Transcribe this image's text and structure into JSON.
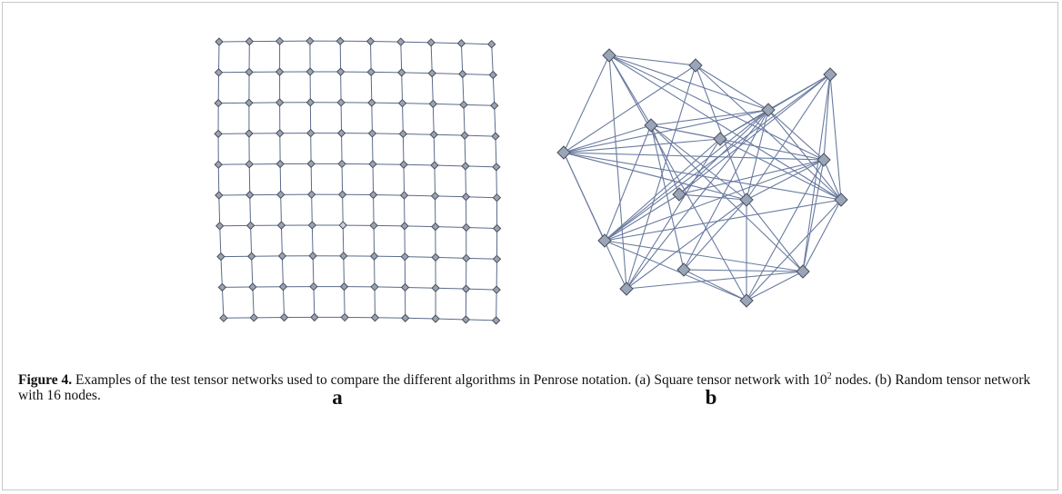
{
  "panels": {
    "a": "a",
    "b": "b"
  },
  "caption": {
    "label": "Figure 4.",
    "text_1": " Examples of the test tensor networks used to compare the different algorithms in Penrose notation. (a) Square tensor network with 10",
    "sup": "2",
    "text_2": " nodes. (b) Random tensor network with 16 nodes."
  }
}
